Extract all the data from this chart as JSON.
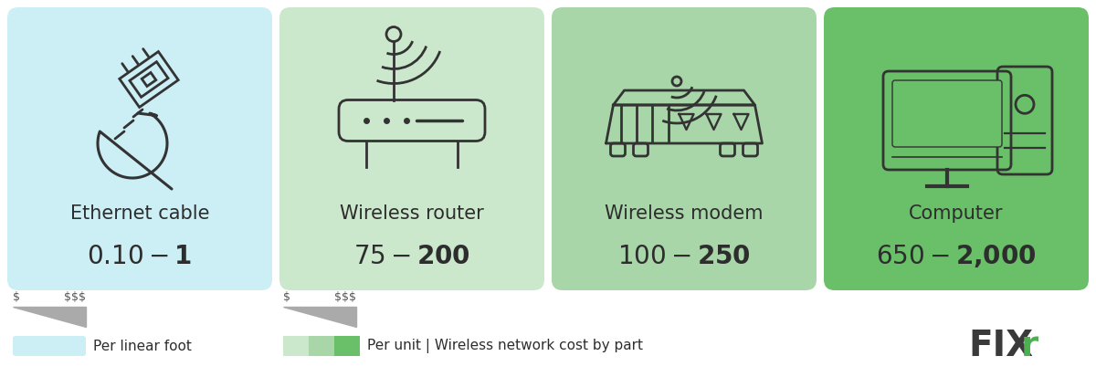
{
  "cards": [
    {
      "title": "Ethernet cable",
      "price": "$0.10 - $1",
      "bg_color": "#cceef5",
      "icon_type": "ethernet"
    },
    {
      "title": "Wireless router",
      "price": "$75 - $200",
      "bg_color": "#cce8cc",
      "icon_type": "router"
    },
    {
      "title": "Wireless modem",
      "price": "$100 - $250",
      "bg_color": "#a8d6a8",
      "icon_type": "modem"
    },
    {
      "title": "Computer",
      "price": "$650 - $2,000",
      "bg_color": "#6abf69",
      "icon_type": "computer"
    }
  ],
  "legend1_label": "Per linear foot",
  "legend2_label": "Per unit | Wireless network cost by part",
  "legend1_color": "#cceef5",
  "bg_white": "#ffffff",
  "fixr_color_fix": "#3a3a3a",
  "fixr_color_r": "#4caf50",
  "icon_color": "#333333",
  "title_fontsize": 15,
  "price_fontsize": 20
}
